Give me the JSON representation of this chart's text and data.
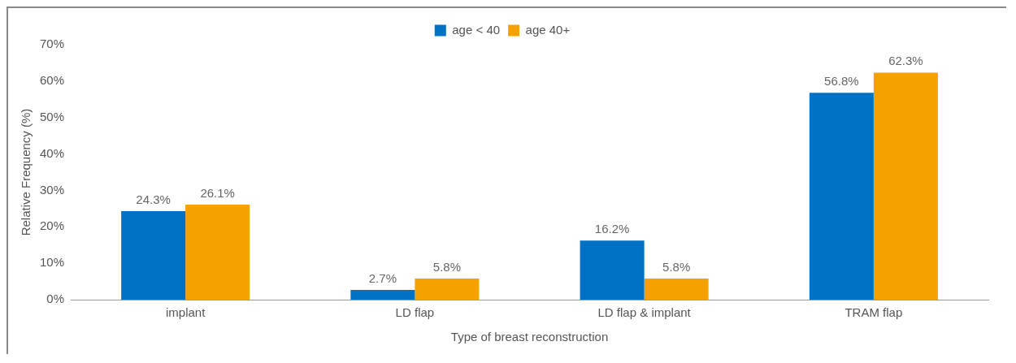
{
  "chart_data": {
    "type": "bar",
    "xlabel": "Type of breast reconstruction",
    "ylabel": "Relative Frequency (%)",
    "categories": [
      "implant",
      "LD flap",
      "LD flap & implant",
      "TRAM flap"
    ],
    "series": [
      {
        "name": "age < 40",
        "color": "#0072c6",
        "values": [
          24.3,
          2.7,
          16.2,
          56.8
        ],
        "value_labels": [
          "24.3%",
          "2.7%",
          "16.2%",
          "56.8%"
        ]
      },
      {
        "name": "age 40+",
        "color": "#f5a200",
        "values": [
          26.1,
          5.8,
          5.8,
          62.3
        ],
        "value_labels": [
          "26.1%",
          "5.8%",
          "5.8%",
          "62.3%"
        ]
      }
    ],
    "ylim": [
      0,
      70
    ],
    "yticks": [
      {
        "value": 0,
        "label": "0%"
      },
      {
        "value": 10,
        "label": "10%"
      },
      {
        "value": 20,
        "label": "20%"
      },
      {
        "value": 30,
        "label": "30%"
      },
      {
        "value": 40,
        "label": "40%"
      },
      {
        "value": 50,
        "label": "50%"
      },
      {
        "value": 60,
        "label": "60%"
      },
      {
        "value": 70,
        "label": "70%"
      }
    ],
    "legend": "top",
    "grid": false
  }
}
